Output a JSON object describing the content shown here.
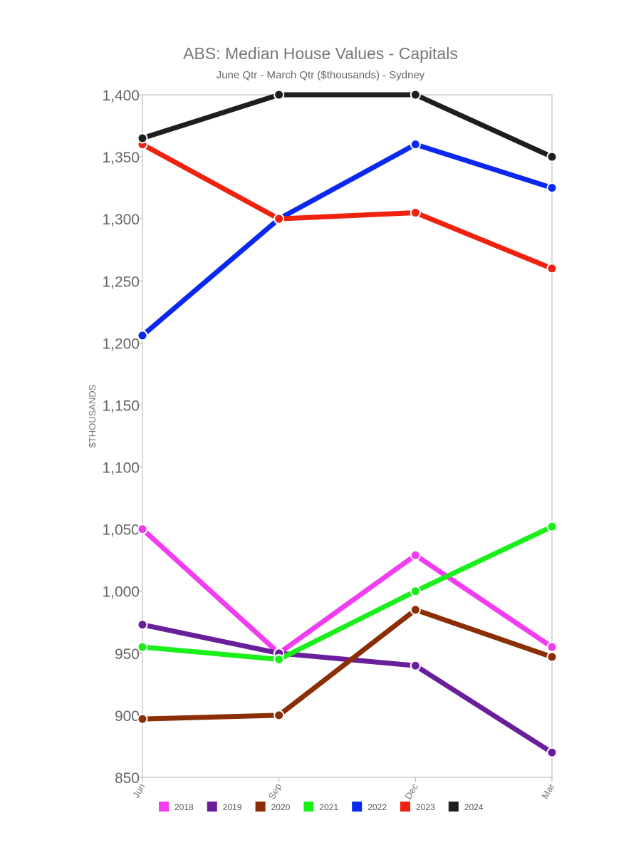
{
  "chart_data": {
    "type": "line",
    "title": "ABS: Median House Values - Capitals",
    "subtitle": "June Qtr - March Qtr ($thousands) - Sydney",
    "xlabel": "",
    "ylabel": "$THOUSANDS",
    "categories": [
      "Jun",
      "Sep",
      "Dec",
      "Mar"
    ],
    "ylim": [
      850,
      1400
    ],
    "yticks": [
      850,
      900,
      950,
      1000,
      1050,
      1100,
      1150,
      1200,
      1250,
      1300,
      1350,
      1400
    ],
    "grid": false,
    "legend_position": "bottom",
    "series": [
      {
        "name": "2018",
        "color": "#f23cf0",
        "values": [
          1050,
          950,
          1029,
          955
        ]
      },
      {
        "name": "2019",
        "color": "#6a1f9a",
        "values": [
          973,
          950,
          940,
          870
        ]
      },
      {
        "name": "2020",
        "color": "#8b2e05",
        "values": [
          897,
          900,
          985,
          947
        ]
      },
      {
        "name": "2021",
        "color": "#19f019",
        "values": [
          955,
          945,
          1000,
          1052
        ]
      },
      {
        "name": "2022",
        "color": "#0a28f0",
        "values": [
          1206,
          1300,
          1360,
          1325
        ]
      },
      {
        "name": "2023",
        "color": "#f0210f",
        "values": [
          1360,
          1300,
          1305,
          1260
        ]
      },
      {
        "name": "2024",
        "color": "#1e1e1e",
        "values": [
          1365,
          1400,
          1400,
          1350
        ]
      }
    ]
  }
}
